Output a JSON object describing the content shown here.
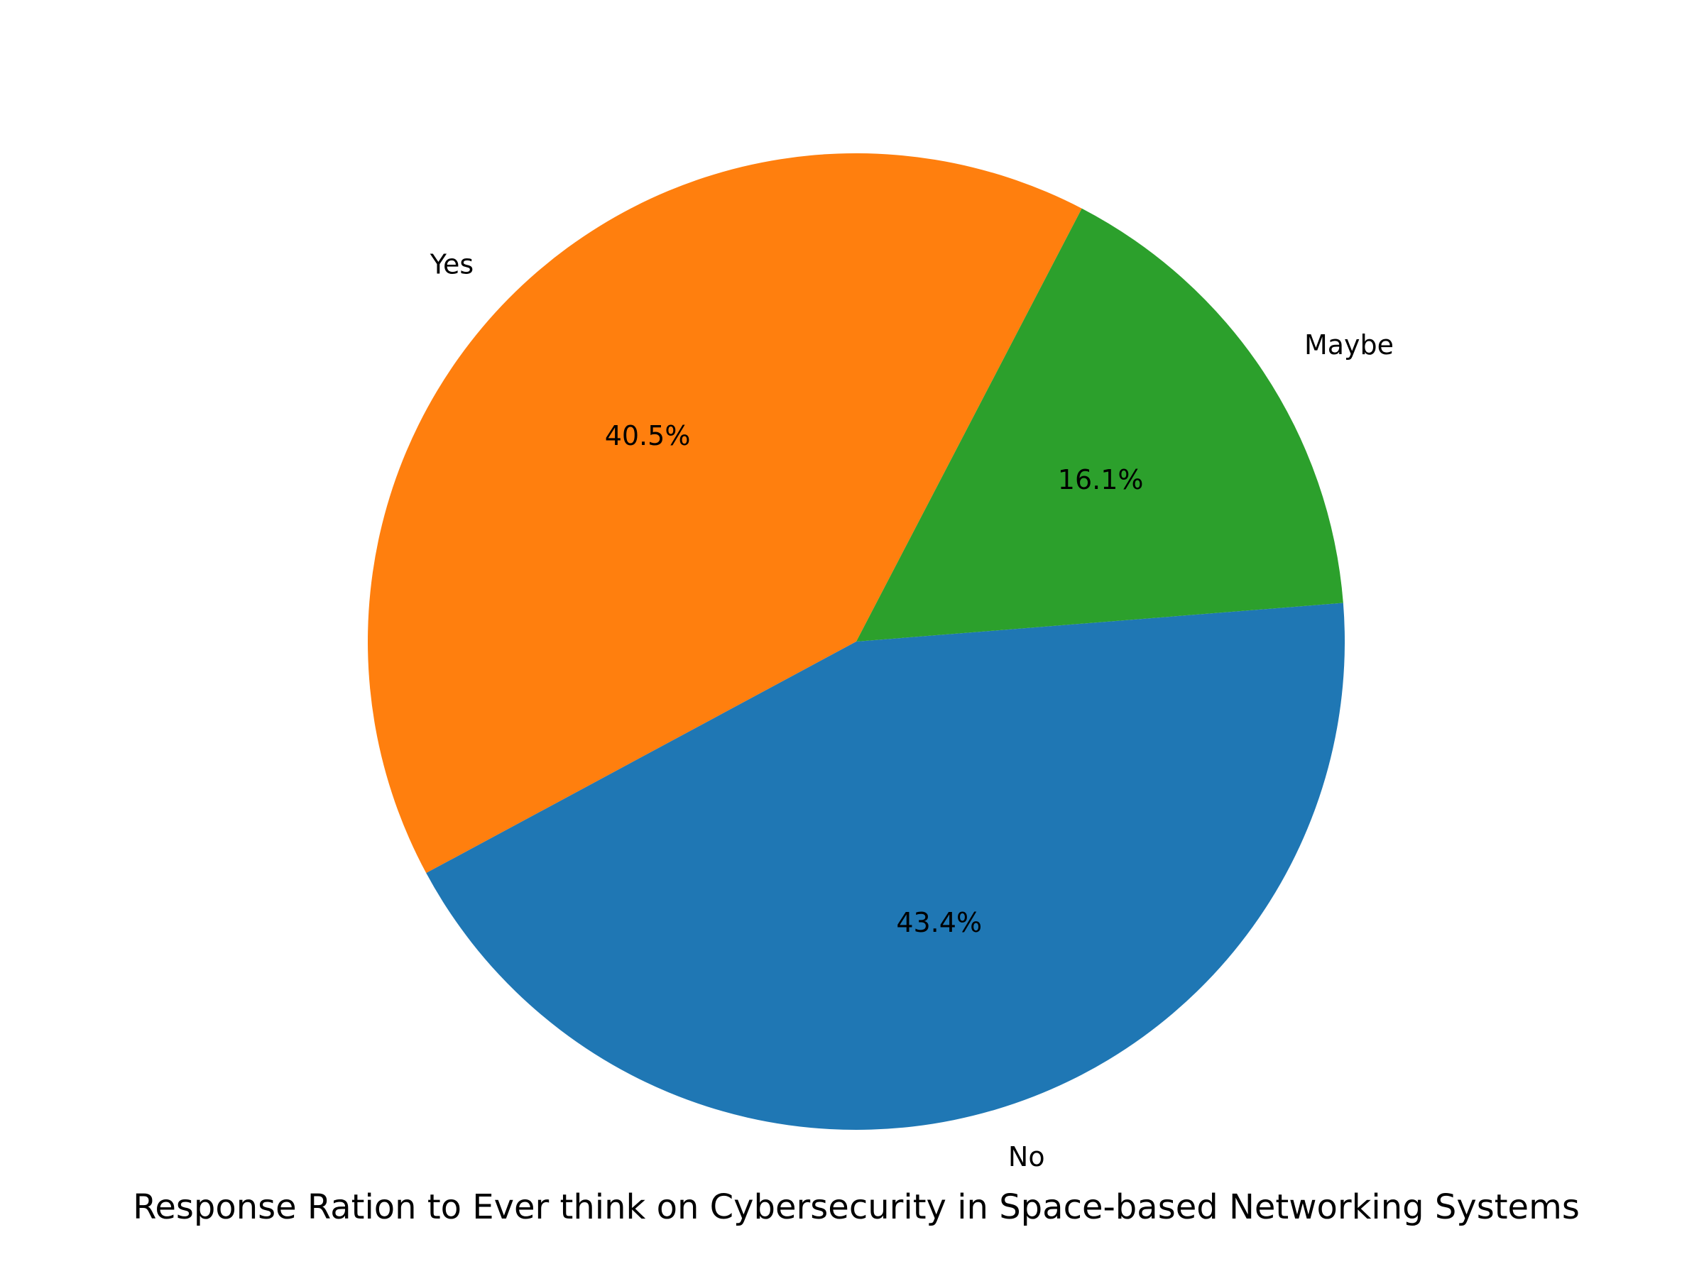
{
  "chart_data": {
    "type": "pie",
    "title": "Response Ration to Ever think on Cybersecurity in Space-based Networking Systems",
    "slices": [
      {
        "label": "Yes",
        "value": 40.5,
        "pct_label": "40.5%",
        "color": "#ff7f0e"
      },
      {
        "label": "No",
        "value": 43.4,
        "pct_label": "43.4%",
        "color": "#1f77b4"
      },
      {
        "label": "Maybe",
        "value": 16.1,
        "pct_label": "16.1%",
        "color": "#2ca02c"
      }
    ]
  }
}
